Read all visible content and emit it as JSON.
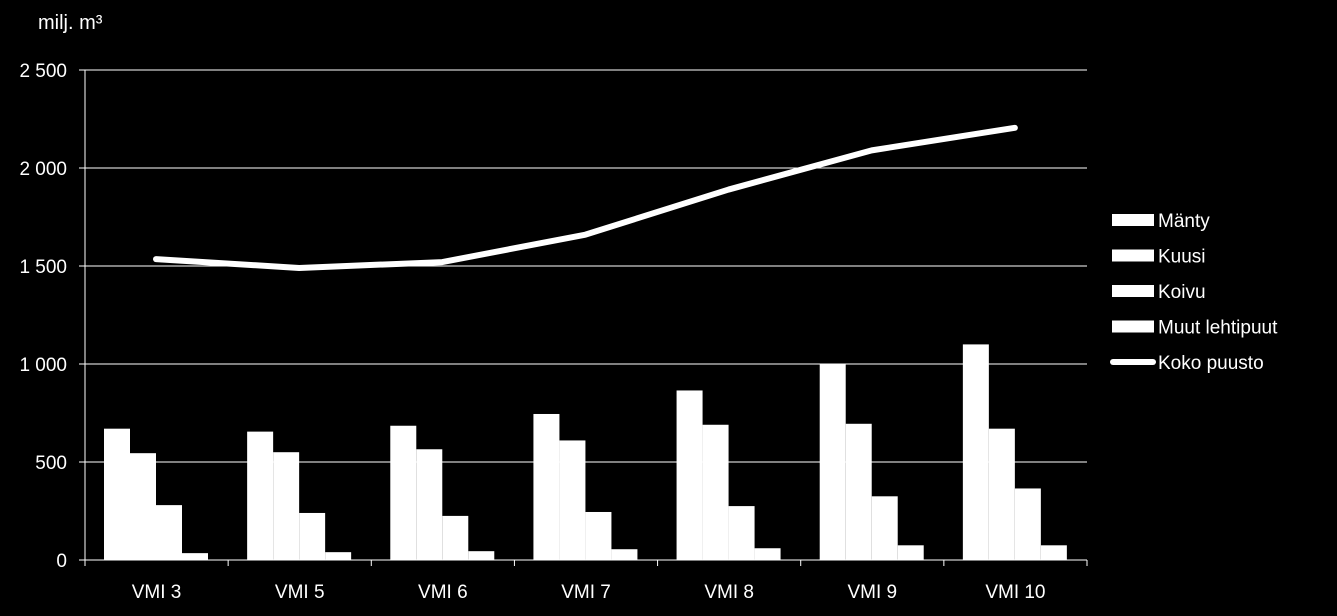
{
  "chart_data": {
    "type": "bar",
    "ylabel": "milj. m³",
    "ylim": [
      0,
      2500
    ],
    "yticks": [
      0,
      500,
      1000,
      1500,
      2000,
      2500
    ],
    "ytick_labels": [
      "0",
      "500",
      "1 000",
      "1 500",
      "2 000",
      "2 500"
    ],
    "categories": [
      "VMI 3",
      "VMI 5",
      "VMI 6",
      "VMI 7",
      "VMI 8",
      "VMI 9",
      "VMI 10"
    ],
    "grid": true,
    "legend_position": "right",
    "series": [
      {
        "name": "Mänty",
        "type": "bar",
        "color": "#ffffff",
        "values": [
          670,
          655,
          685,
          745,
          865,
          1000,
          1100
        ]
      },
      {
        "name": "Kuusi",
        "type": "bar",
        "color": "#ffffff",
        "values": [
          545,
          550,
          565,
          610,
          690,
          695,
          670
        ]
      },
      {
        "name": "Koivu",
        "type": "bar",
        "color": "#ffffff",
        "values": [
          280,
          240,
          225,
          245,
          275,
          325,
          365
        ]
      },
      {
        "name": "Muut lehtipuut",
        "type": "bar",
        "color": "#ffffff",
        "values": [
          35,
          40,
          45,
          55,
          60,
          75,
          75
        ]
      },
      {
        "name": "Koko puusto",
        "type": "line",
        "color": "#ffffff",
        "values": [
          1535,
          1490,
          1520,
          1660,
          1890,
          2090,
          2205
        ]
      }
    ]
  }
}
